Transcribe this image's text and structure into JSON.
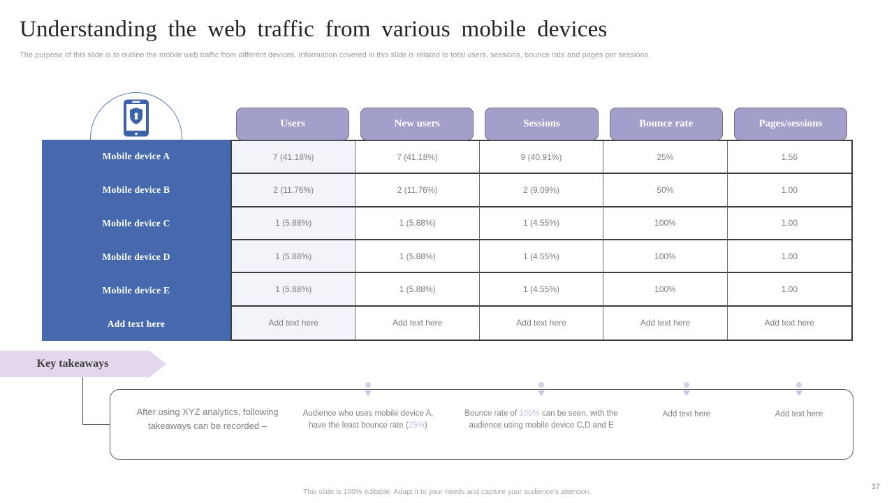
{
  "slide": {
    "title": "Understanding the web traffic from various mobile devices",
    "subtitle": "The purpose of this slide is to outline the mobile web traffic from different devices. Information covered in this slide is related to total users, sessions, bounce rate and pages per sessions.",
    "footer": "This slide is 100% editable. Adapt it to your needs and capture your audience's attention.",
    "page_number": "37"
  },
  "icons": {
    "device": "phone-shield-icon"
  },
  "colors": {
    "row_header_blue": "#4569ac",
    "column_header_purple": "#a39fcb",
    "ribbon_lavender": "#e3d7eb",
    "highlight_lavender": "#c5badf",
    "first_column_bg": "#f3f3fa"
  },
  "chart_data": {
    "type": "table",
    "title": "Understanding the web traffic from various mobile devices",
    "columns": [
      "Users",
      "New users",
      "Sessions",
      "Bounce rate",
      "Pages/sessions"
    ],
    "rows": [
      {
        "label": "Mobile device A",
        "values": [
          "7 (41.18%)",
          "7 (41.18%)",
          "9 (40.91%)",
          "25%",
          "1.56"
        ]
      },
      {
        "label": "Mobile device B",
        "values": [
          "2 (11.76%)",
          "2 (11.76%)",
          "2 (9.09%)",
          "50%",
          "1.00"
        ]
      },
      {
        "label": "Mobile device C",
        "values": [
          "1 (5.88%)",
          "1 (5.88%)",
          "1 (4.55%)",
          "100%",
          "1.00"
        ]
      },
      {
        "label": "Mobile device D",
        "values": [
          "1 (5.88%)",
          "1 (5.88%)",
          "1 (4.55%)",
          "100%",
          "1.00"
        ]
      },
      {
        "label": "Mobile device E",
        "values": [
          "1 (5.88%)",
          "1 (5.88%)",
          "1 (4.55%)",
          "100%",
          "1.00"
        ]
      },
      {
        "label": "Add text here",
        "values": [
          "Add text here",
          "Add text here",
          "Add text here",
          "Add text here",
          "Add text here"
        ]
      }
    ]
  },
  "key_takeaways": {
    "label": "Key takeaways",
    "items": [
      {
        "marker": false,
        "segments": [
          {
            "text": "After using XYZ analytics, following takeaways can be recorded –",
            "highlight": false
          }
        ]
      },
      {
        "marker": true,
        "segments": [
          {
            "text": "Audience who uses mobile device A, have the least bounce rate (",
            "highlight": false
          },
          {
            "text": "25%",
            "highlight": true
          },
          {
            "text": ")",
            "highlight": false
          }
        ]
      },
      {
        "marker": true,
        "segments": [
          {
            "text": "Bounce rate of ",
            "highlight": false
          },
          {
            "text": "100%",
            "highlight": true
          },
          {
            "text": " can be seen, with the audience using mobile device C,D and E",
            "highlight": false
          }
        ]
      },
      {
        "marker": true,
        "segments": [
          {
            "text": "Add text here",
            "highlight": false
          }
        ]
      },
      {
        "marker": true,
        "segments": [
          {
            "text": "Add text here",
            "highlight": false
          }
        ]
      }
    ]
  }
}
